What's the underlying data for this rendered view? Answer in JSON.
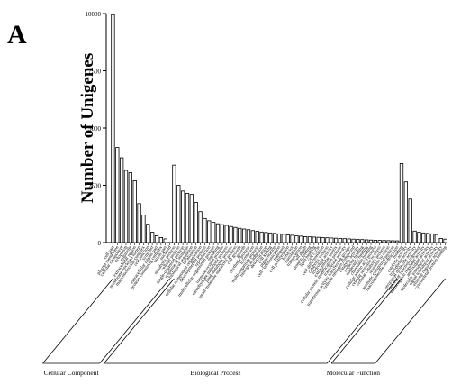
{
  "panel_label": "A",
  "chart_data": {
    "type": "bar",
    "title": "",
    "xlabel": "",
    "ylabel": "Number of Unigenes",
    "ylim": [
      0,
      10000
    ],
    "yticks": [
      0,
      2500,
      5000,
      7500,
      10000
    ],
    "grid": false,
    "legend": "none",
    "bar_fill": "#ffffff",
    "bar_stroke": "#000000",
    "groups": [
      {
        "name": "Cellular Component",
        "categories": [
          "cell part",
          "plasma membrane",
          "cellular component",
          "cytoplasm",
          "organelle",
          "extracellular region",
          "membrane-enclosed lumen",
          "macromolecular complex",
          "cell junction",
          "symplast",
          "extracellular region part",
          "protein-containing complex",
          "virion part",
          "nucleoid"
        ],
        "values": [
          9950,
          4150,
          3700,
          3150,
          3050,
          2700,
          1700,
          1200,
          800,
          450,
          300,
          220,
          160,
          0
        ]
      },
      {
        "name": "Biological Process",
        "categories": [
          "metabolic process",
          "cellular process",
          "single-organism process",
          "response to stimulus",
          "biological regulation",
          "localization",
          "cellular component organization",
          "developmental process",
          "reproduction",
          "multicellular organismal process",
          "signaling",
          "immune system process",
          "carbohydrate metabolic process",
          "lipid metabolic process",
          "small molecule metabolic process",
          "cell growth",
          "growth",
          "rhythmic process",
          "locomotion",
          "multi-organism process",
          "biological adhesion",
          "detoxification",
          "cell killing",
          "pigmentation",
          "cell communication",
          "transport",
          "cell proliferation",
          "behavior",
          "translation",
          "transcription",
          "cell death",
          "protein folding",
          "lipid binding",
          "cell cycle",
          "cell differentiation",
          "catabolic process",
          "hydrolase activity",
          "extracellular matrix",
          "cellular protein modification process",
          "transferase activity",
          "transferase activity transferring groups",
          "cellular nitrogen compound",
          "catalytic activity",
          "cofactor binding",
          "nucleotide binding",
          "chromatin binding",
          "cellular amino acid process",
          "cellular response to stress",
          "cellular catabolic process",
          "response to stress",
          "aromatic compound process",
          "macromolecule modification"
        ],
        "values": [
          3380,
          2500,
          2250,
          2150,
          2100,
          1750,
          1350,
          1050,
          950,
          880,
          820,
          780,
          750,
          700,
          660,
          620,
          590,
          560,
          520,
          490,
          460,
          440,
          420,
          400,
          380,
          360,
          340,
          320,
          300,
          280,
          260,
          250,
          240,
          230,
          220,
          210,
          200,
          190,
          180,
          170,
          160,
          150,
          140,
          130,
          120,
          110,
          100,
          95,
          90,
          85,
          80,
          75
        ]
      },
      {
        "name": "Molecular Function",
        "categories": [
          "binding",
          "catalytic activity",
          "transporter activity",
          "structural molecule activity",
          "molecular function regulator",
          "transcription regulator activity",
          "antioxidant activity",
          "molecular transducer activity",
          "signal transducer activity",
          "enzyme regulator activity",
          "cytoskeletal protein binding"
        ],
        "values": [
          3450,
          2650,
          1900,
          500,
          450,
          420,
          400,
          380,
          350,
          180,
          150
        ]
      }
    ]
  }
}
